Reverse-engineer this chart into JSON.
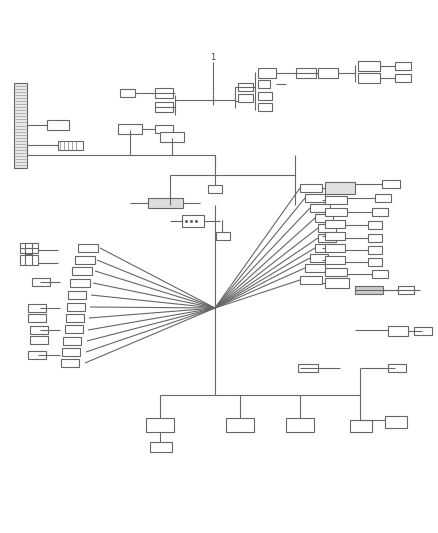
{
  "bg_color": "#ffffff",
  "lc": "#666666",
  "lw": 0.8,
  "figsize": [
    4.38,
    5.33
  ],
  "dpi": 100
}
